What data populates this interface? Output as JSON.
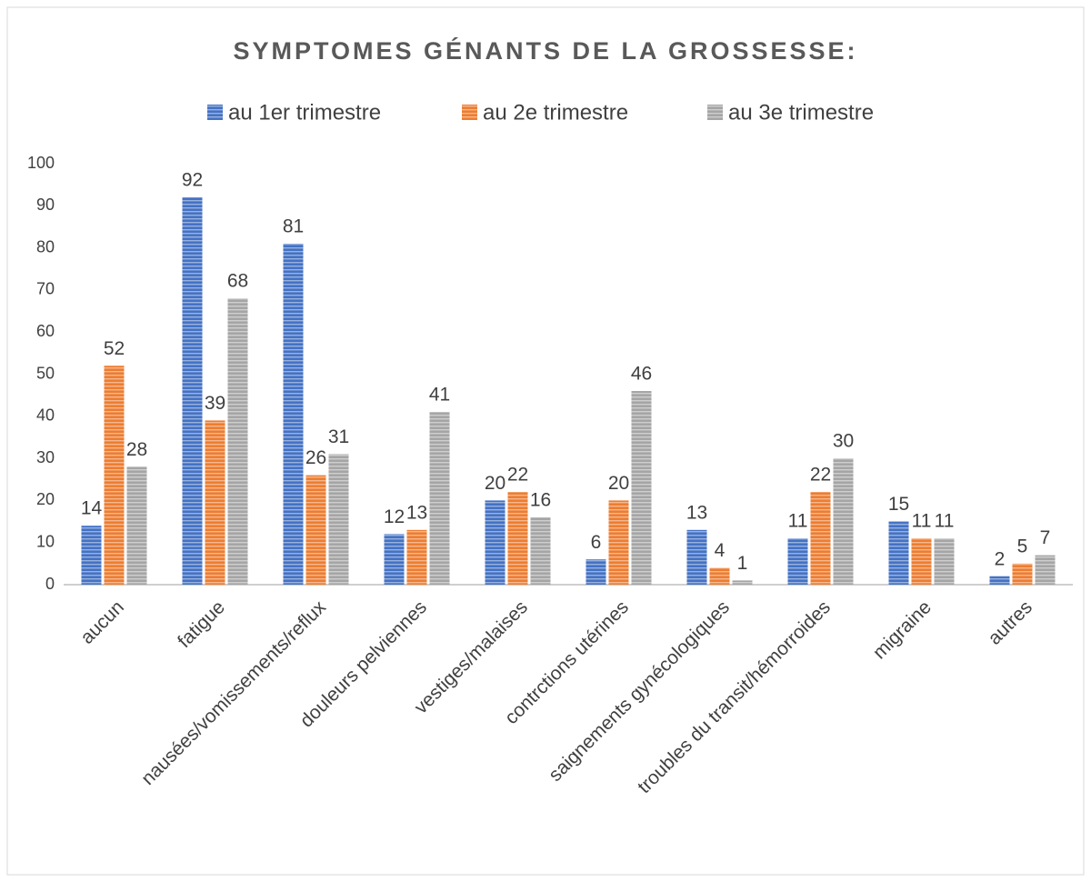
{
  "chart_data": {
    "type": "bar",
    "title": "SYMPTOMES GÉNANTS DE LA GROSSESSE:",
    "categories": [
      "aucun",
      "fatigue",
      "nausées/vomissements/reflux",
      "douleurs pelviennes",
      "vestiges/malaises",
      "contrctions utérines",
      "saignements gynécologiques",
      "troubles du transit/hémorroides",
      "migraine",
      "autres"
    ],
    "series": [
      {
        "name": "au 1er trimestre",
        "color": "#4472c4",
        "values": [
          14,
          92,
          81,
          12,
          20,
          6,
          13,
          11,
          15,
          2
        ]
      },
      {
        "name": "au 2e trimestre",
        "color": "#ed7d31",
        "values": [
          52,
          39,
          26,
          13,
          22,
          20,
          4,
          22,
          11,
          5
        ]
      },
      {
        "name": "au 3e trimestre",
        "color": "#a5a5a5",
        "values": [
          28,
          68,
          31,
          41,
          16,
          46,
          1,
          30,
          11,
          7
        ]
      }
    ],
    "ylim": [
      0,
      100
    ],
    "yticks": [
      0,
      10,
      20,
      30,
      40,
      50,
      60,
      70,
      80,
      90,
      100
    ],
    "grid": false,
    "legend": "top",
    "pattern": "horizontal-stripes"
  }
}
